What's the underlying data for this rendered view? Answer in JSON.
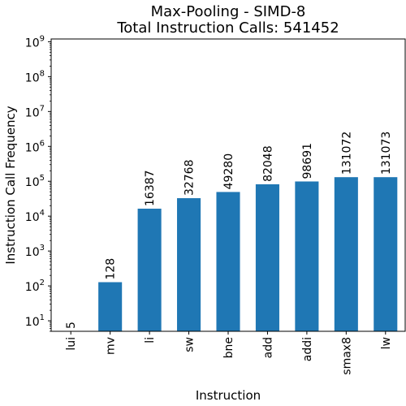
{
  "chart_data": {
    "type": "bar",
    "title": "Max-Pooling - SIMD-8",
    "subtitle": "Total Instruction Calls: 541452",
    "xlabel": "Instruction",
    "ylabel": "Instruction Call Frequency",
    "yscale": "log",
    "ylim": [
      5,
      1200000000
    ],
    "ytick_values": [
      10,
      100,
      1000,
      10000,
      100000,
      1000000,
      10000000,
      100000000,
      1000000000
    ],
    "ytick_labels": [
      {
        "base": "10",
        "exp": "1"
      },
      {
        "base": "10",
        "exp": "2"
      },
      {
        "base": "10",
        "exp": "3"
      },
      {
        "base": "10",
        "exp": "4"
      },
      {
        "base": "10",
        "exp": "5"
      },
      {
        "base": "10",
        "exp": "6"
      },
      {
        "base": "10",
        "exp": "7"
      },
      {
        "base": "10",
        "exp": "8"
      },
      {
        "base": "10",
        "exp": "9"
      }
    ],
    "categories": [
      "lui",
      "mv",
      "li",
      "sw",
      "bne",
      "add",
      "addi",
      "smax8",
      "lw"
    ],
    "values": [
      5,
      128,
      16387,
      32768,
      49280,
      82048,
      98691,
      131072,
      131073
    ],
    "data_labels": [
      "5",
      "128",
      "16387",
      "32768",
      "49280",
      "82048",
      "98691",
      "131072",
      "131073"
    ],
    "bar_color": "#1f77b4",
    "grid": false,
    "legend": "none"
  }
}
